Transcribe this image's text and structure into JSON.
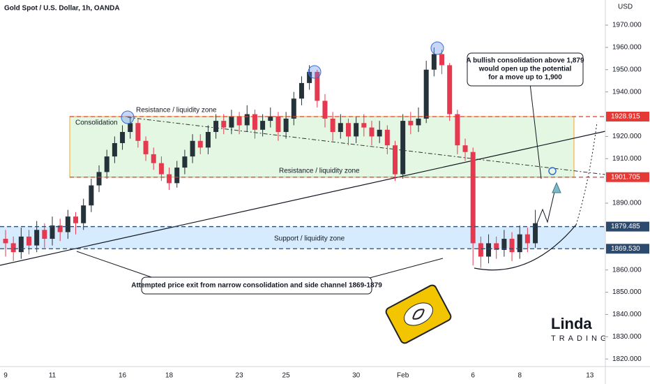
{
  "chart_data": {
    "type": "candlestick",
    "title": "Gold Spot / U.S. Dollar, 1h, OANDA",
    "currency": "USD",
    "up_color": "#26323a",
    "down_color": "#e53950",
    "ylim": [
      1816.6,
      1981.3
    ],
    "yticks": [
      {
        "value": 1970,
        "label": "1970.000"
      },
      {
        "value": 1960,
        "label": "1960.000"
      },
      {
        "value": 1950,
        "label": "1950.000"
      },
      {
        "value": 1940,
        "label": "1940.000"
      },
      {
        "value": 1920,
        "label": "1920.000"
      },
      {
        "value": 1910,
        "label": "1910.000"
      },
      {
        "value": 1890,
        "label": "1890.000"
      },
      {
        "value": 1860,
        "label": "1860.000"
      },
      {
        "value": 1850,
        "label": "1850.000"
      },
      {
        "value": 1840,
        "label": "1840.000"
      },
      {
        "value": 1830,
        "label": "1830.000"
      },
      {
        "value": 1820,
        "label": "1820.000"
      }
    ],
    "categories": [
      "9",
      null,
      null,
      null,
      null,
      null,
      "11",
      null,
      null,
      null,
      null,
      null,
      null,
      null,
      null,
      "16",
      null,
      null,
      null,
      null,
      null,
      "18",
      null,
      null,
      null,
      null,
      null,
      null,
      null,
      null,
      "23",
      null,
      null,
      null,
      null,
      null,
      "25",
      null,
      null,
      null,
      null,
      null,
      null,
      null,
      null,
      "30",
      null,
      null,
      null,
      null,
      null,
      "Feb",
      null,
      null,
      null,
      null,
      null,
      null,
      null,
      null,
      "6",
      null,
      null,
      null,
      null,
      null,
      "8",
      null,
      null,
      null,
      null,
      null,
      null,
      null,
      null,
      "13",
      null
    ],
    "ohlc": [
      [
        1874,
        1878,
        1866,
        1872
      ],
      [
        1872,
        1875,
        1864,
        1868
      ],
      [
        1868,
        1879,
        1865,
        1875
      ],
      [
        1875,
        1878,
        1867,
        1871
      ],
      [
        1871,
        1882,
        1868,
        1878
      ],
      [
        1878,
        1881,
        1870,
        1874
      ],
      [
        1874,
        1884,
        1871,
        1880
      ],
      [
        1880,
        1883,
        1873,
        1877
      ],
      [
        1877,
        1887,
        1874,
        1884
      ],
      [
        1884,
        1886,
        1876,
        1881
      ],
      [
        1881,
        1892,
        1878,
        1889
      ],
      [
        1889,
        1901,
        1886,
        1898
      ],
      [
        1898,
        1907,
        1895,
        1904
      ],
      [
        1904,
        1914,
        1901,
        1911
      ],
      [
        1911,
        1920,
        1908,
        1917
      ],
      [
        1917,
        1925,
        1914,
        1922
      ],
      [
        1922,
        1929,
        1919,
        1926
      ],
      [
        1926,
        1928,
        1915,
        1918
      ],
      [
        1918,
        1920,
        1909,
        1912
      ],
      [
        1912,
        1915,
        1905,
        1908
      ],
      [
        1908,
        1911,
        1900,
        1903
      ],
      [
        1903,
        1906,
        1896,
        1899
      ],
      [
        1899,
        1909,
        1897,
        1906
      ],
      [
        1906,
        1914,
        1903,
        1911
      ],
      [
        1911,
        1921,
        1908,
        1918
      ],
      [
        1918,
        1921,
        1912,
        1915
      ],
      [
        1915,
        1925,
        1912,
        1922
      ],
      [
        1922,
        1930,
        1919,
        1927
      ],
      [
        1927,
        1930,
        1921,
        1924
      ],
      [
        1924,
        1932,
        1921,
        1929
      ],
      [
        1929,
        1931,
        1921,
        1925
      ],
      [
        1925,
        1934,
        1922,
        1930
      ],
      [
        1930,
        1932,
        1919,
        1923
      ],
      [
        1923,
        1930,
        1920,
        1927
      ],
      [
        1927,
        1933,
        1924,
        1929
      ],
      [
        1929,
        1931,
        1918,
        1922
      ],
      [
        1922,
        1931,
        1919,
        1928
      ],
      [
        1928,
        1940,
        1925,
        1937
      ],
      [
        1937,
        1947,
        1934,
        1944
      ],
      [
        1944,
        1952,
        1941,
        1949
      ],
      [
        1949,
        1950,
        1933,
        1936
      ],
      [
        1936,
        1939,
        1924,
        1928
      ],
      [
        1928,
        1931,
        1918,
        1922
      ],
      [
        1922,
        1930,
        1919,
        1926
      ],
      [
        1926,
        1928,
        1916,
        1920
      ],
      [
        1920,
        1929,
        1917,
        1926
      ],
      [
        1926,
        1930,
        1920,
        1924
      ],
      [
        1924,
        1927,
        1916,
        1920
      ],
      [
        1920,
        1927,
        1917,
        1923
      ],
      [
        1923,
        1925,
        1912,
        1916
      ],
      [
        1916,
        1918,
        1900,
        1903
      ],
      [
        1903,
        1930,
        1901,
        1927
      ],
      [
        1927,
        1931,
        1921,
        1925
      ],
      [
        1925,
        1933,
        1922,
        1928
      ],
      [
        1928,
        1954,
        1926,
        1950
      ],
      [
        1950,
        1960,
        1947,
        1957
      ],
      [
        1957,
        1959,
        1948,
        1952
      ],
      [
        1952,
        1953,
        1927,
        1930
      ],
      [
        1930,
        1932,
        1912,
        1916
      ],
      [
        1916,
        1919,
        1909,
        1913
      ],
      [
        1913,
        1915,
        1862,
        1872
      ],
      [
        1872,
        1875,
        1861,
        1866
      ],
      [
        1866,
        1876,
        1863,
        1872
      ],
      [
        1872,
        1875,
        1865,
        1869
      ],
      [
        1869,
        1878,
        1866,
        1874
      ],
      [
        1874,
        1877,
        1864,
        1868
      ],
      [
        1868,
        1880,
        1865,
        1876
      ],
      [
        1876,
        1879,
        1868,
        1872
      ],
      [
        1872,
        1887,
        1870,
        1881
      ],
      null,
      null,
      null,
      null,
      null,
      null,
      null,
      null
    ],
    "levels": [
      {
        "value": 1928.915,
        "label": "1928.915",
        "color": "#e53935"
      },
      {
        "value": 1901.705,
        "label": "1901.705",
        "color": "#e53935"
      },
      {
        "value": 1879.485,
        "label": "1879.485",
        "color": "#2c4a6e"
      },
      {
        "value": 1869.53,
        "label": "1869.530",
        "color": "#2c4a6e"
      }
    ],
    "annotations": {
      "consolidation": "Consolidation",
      "resistance_top": "Resistance / liquidity zone",
      "resistance_bottom": "Resistance / liquidity zone",
      "support": "Support / liquidity zone",
      "exit_note": "Attempted price exit from narrow consolidation and side channel 1869-1879",
      "bullish_note": [
        "A bullish consolidation above 1,879",
        "would open up the potential",
        "for a move up to 1,900"
      ]
    },
    "logo": {
      "name": "Linda",
      "sub": "TRADING"
    }
  }
}
